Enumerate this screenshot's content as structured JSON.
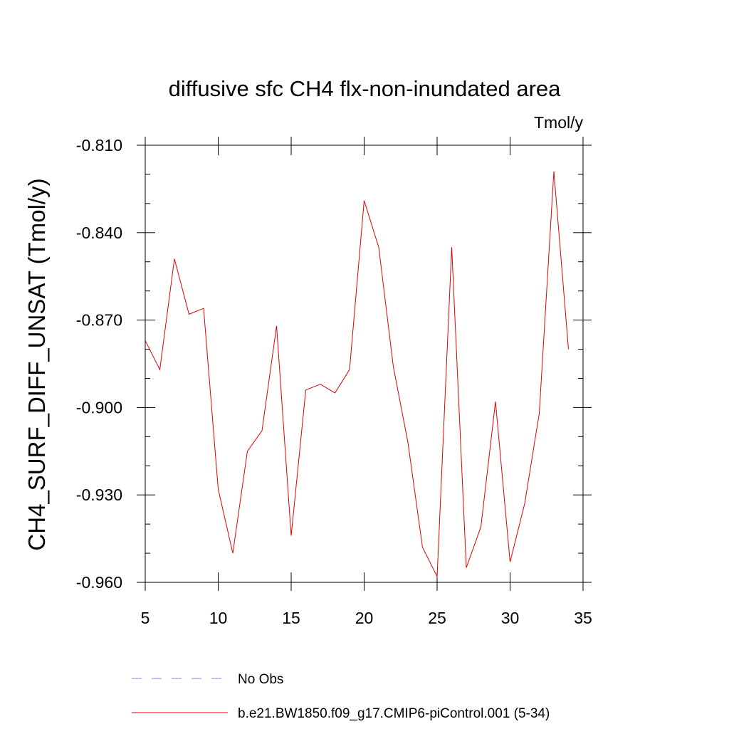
{
  "chart_data": {
    "type": "line",
    "title": "diffusive sfc CH4 flx-non-inundated area",
    "units_label": "Tmol/y",
    "ylabel": "CH4_SURF_DIFF_UNSAT  (Tmol/y)",
    "xlabel": "",
    "xlim": [
      5,
      35
    ],
    "ylim": [
      -0.96,
      -0.81
    ],
    "x_ticks": [
      "5",
      "10",
      "15",
      "20",
      "25",
      "30",
      "35"
    ],
    "y_ticks": [
      "-0.810",
      "-0.840",
      "-0.870",
      "-0.900",
      "-0.930",
      "-0.960"
    ],
    "x_tick_values": [
      5,
      10,
      15,
      20,
      25,
      30,
      35
    ],
    "y_tick_values": [
      -0.81,
      -0.84,
      -0.87,
      -0.9,
      -0.93,
      -0.96
    ],
    "grid": false,
    "legend_position": "bottom",
    "series": [
      {
        "name": "No Obs",
        "color": "#8080e0",
        "dash": "dashed",
        "x": [],
        "y": []
      },
      {
        "name": "b.e21.BW1850.f09_g17.CMIP6-piControl.001 (5-34)",
        "color": "#e00000",
        "dash": "solid",
        "x": [
          5,
          6,
          7,
          8,
          9,
          10,
          11,
          12,
          13,
          14,
          15,
          16,
          17,
          18,
          19,
          20,
          21,
          22,
          23,
          24,
          25,
          26,
          27,
          28,
          29,
          30,
          31,
          32,
          33,
          34
        ],
        "y": [
          -0.877,
          -0.887,
          -0.849,
          -0.868,
          -0.866,
          -0.928,
          -0.95,
          -0.915,
          -0.908,
          -0.872,
          -0.944,
          -0.894,
          -0.892,
          -0.895,
          -0.887,
          -0.829,
          -0.845,
          -0.886,
          -0.912,
          -0.948,
          -0.958,
          -0.845,
          -0.955,
          -0.941,
          -0.898,
          -0.953,
          -0.933,
          -0.902,
          -0.819,
          -0.88
        ]
      }
    ]
  }
}
